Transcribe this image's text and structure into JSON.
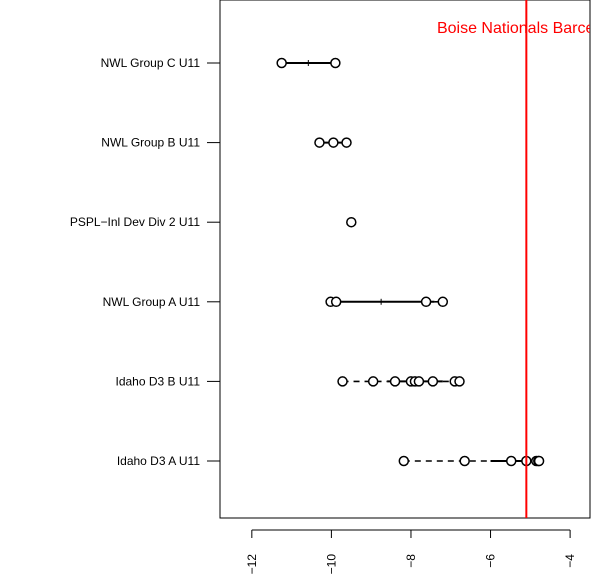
{
  "chart_data": {
    "type": "scatter",
    "orientation": "horizontal",
    "categories": [
      "NWL Group C U11",
      "NWL Group B U11",
      "PSPL−Inl Dev Div 2 U11",
      "NWL Group A U11",
      "Idaho D3 B U11",
      "Idaho D3 A U11"
    ],
    "rows": [
      {
        "category": "NWL Group C U11",
        "points": [
          -11.25,
          -9.9
        ],
        "median": -10.58,
        "q1": -11.25,
        "q3": -9.9,
        "min": -11.25,
        "max": -9.9
      },
      {
        "category": "NWL Group B U11",
        "points": [
          -10.3,
          -9.95,
          -9.62
        ],
        "median": -9.95,
        "q1": -10.3,
        "q3": -9.62,
        "min": -10.3,
        "max": -9.62
      },
      {
        "category": "PSPL−Inl Dev Div 2 U11",
        "points": [
          -9.5
        ],
        "median": -9.5,
        "q1": -9.5,
        "q3": -9.5,
        "min": -9.5,
        "max": -9.5
      },
      {
        "category": "NWL Group A U11",
        "points": [
          -10.02,
          -9.88,
          -7.62,
          -7.2
        ],
        "median": -8.75,
        "q1": -9.95,
        "q3": -7.41,
        "min": -10.02,
        "max": -7.2
      },
      {
        "category": "Idaho D3 B U11",
        "points": [
          -9.72,
          -8.95,
          -8.4,
          -8.0,
          -7.9,
          -7.8,
          -7.45,
          -6.9,
          -6.78
        ],
        "median": -7.9,
        "q1": -8.6,
        "q3": -7.2,
        "min": -9.72,
        "max": -6.78
      },
      {
        "category": "Idaho D3 A U11",
        "points": [
          -8.18,
          -6.65,
          -5.48,
          -5.1,
          -4.85,
          -4.8,
          -4.78
        ],
        "median": -5.1,
        "q1": -6.0,
        "q3": -4.82,
        "min": -8.18,
        "max": -4.78
      }
    ],
    "reference_line": {
      "x": -5.1,
      "label": "Boise Nationals Barcelon",
      "color": "#ff0000"
    },
    "xlim": [
      -12.8,
      -3.5
    ],
    "xticks": [
      -12,
      -10,
      -8,
      -6,
      -4
    ],
    "xtick_labels": [
      "−12",
      "−10",
      "−8",
      "−6",
      "−4"
    ],
    "title": "",
    "xlabel": "",
    "ylabel": "",
    "grid": false,
    "legend": "none"
  }
}
